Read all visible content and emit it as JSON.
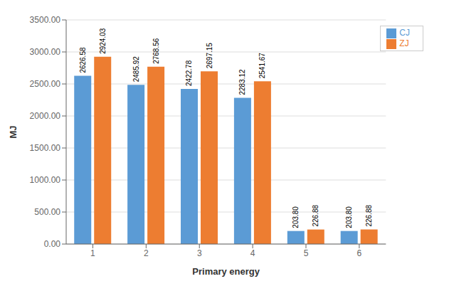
{
  "chart_data": {
    "type": "bar",
    "xlabel": "Primary energy",
    "ylabel": "MJ",
    "categories": [
      "1",
      "2",
      "3",
      "4",
      "5",
      "6"
    ],
    "series": [
      {
        "name": "CJ",
        "color": "#5B9BD5",
        "values": [
          2626.58,
          2485.92,
          2422.78,
          2283.12,
          203.8,
          203.8
        ],
        "value_labels": [
          "2626.58",
          "2485.92",
          "2422.78",
          "2283.12",
          "203.80",
          "203.80"
        ]
      },
      {
        "name": "ZJ",
        "color": "#ED7D31",
        "values": [
          2924.03,
          2768.56,
          2697.15,
          2541.67,
          226.88,
          226.88
        ],
        "value_labels": [
          "2924.03",
          "2768.56",
          "2697.15",
          "2541.67",
          "226.88",
          "226.88"
        ]
      }
    ],
    "ylim": [
      0,
      3500
    ],
    "yticks": [
      {
        "value": 0,
        "label": "0.00"
      },
      {
        "value": 500,
        "label": "500.00"
      },
      {
        "value": 1000,
        "label": "1000.00"
      },
      {
        "value": 1500,
        "label": "1500.00"
      },
      {
        "value": 2000,
        "label": "2000.00"
      },
      {
        "value": 2500,
        "label": "2500.00"
      },
      {
        "value": 3000,
        "label": "3000.00"
      },
      {
        "value": 3500,
        "label": "3500.00"
      }
    ],
    "grid": true,
    "legend": "upper right",
    "data_labels": true
  }
}
